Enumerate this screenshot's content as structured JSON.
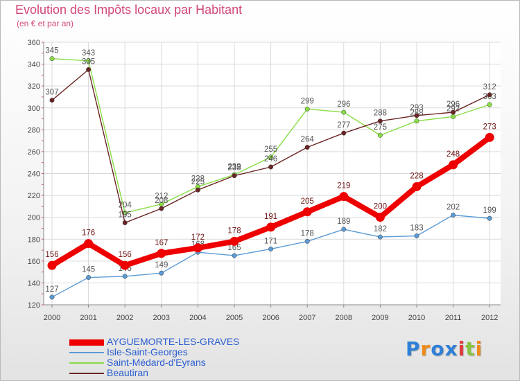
{
  "chart_data": {
    "type": "line",
    "title": "Evolution des Impôts locaux par Habitant",
    "subtitle": "(en € et par an)",
    "xlabel": "",
    "ylabel": "",
    "ylim": [
      120,
      360
    ],
    "y_ticks": [
      120,
      140,
      160,
      180,
      200,
      220,
      240,
      260,
      280,
      300,
      320,
      340,
      360
    ],
    "categories": [
      "2000",
      "2001",
      "2002",
      "2003",
      "2004",
      "2005",
      "2006",
      "2007",
      "2008",
      "2009",
      "2010",
      "2011",
      "2012"
    ],
    "grid": true,
    "legend_position": "bottom-left",
    "series": [
      {
        "name": "AYGUEMORTE-LES-GRAVES",
        "color": "#ee0000",
        "highlight": true,
        "values": [
          156,
          176,
          156,
          167,
          172,
          178,
          191,
          205,
          219,
          200,
          228,
          248,
          273
        ]
      },
      {
        "name": "Isle-Saint-Georges",
        "color": "#5b9bd5",
        "highlight": false,
        "values": [
          127,
          145,
          146,
          149,
          168,
          165,
          171,
          178,
          189,
          182,
          183,
          202,
          199
        ]
      },
      {
        "name": "Saint-Médard-d'Eyrans",
        "color": "#88dd44",
        "highlight": false,
        "values": [
          345,
          343,
          204,
          212,
          228,
          239,
          255,
          299,
          296,
          275,
          288,
          292,
          303
        ]
      },
      {
        "name": "Beautiran",
        "color": "#6b2424",
        "highlight": false,
        "values": [
          307,
          335,
          195,
          208,
          225,
          238,
          246,
          264,
          277,
          288,
          293,
          296,
          312
        ]
      }
    ]
  },
  "logo": {
    "letters": [
      "P",
      "r",
      "o",
      "x",
      "i",
      "t",
      "i"
    ],
    "colors": [
      "#2f7fd8",
      "#f08a1a",
      "#2f7fd8",
      "#2f7fd8",
      "#e03c3c",
      "#88c442",
      "#f08a1a"
    ]
  }
}
